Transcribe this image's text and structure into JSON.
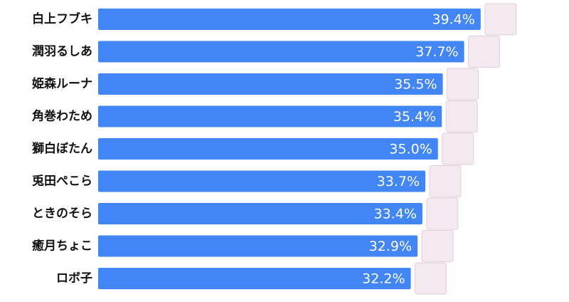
{
  "chart_data": {
    "type": "bar",
    "orientation": "horizontal",
    "color": "#4285f4",
    "categories": [
      "白上フブキ",
      "潤羽るしあ",
      "姫森ルーナ",
      "角巻わため",
      "獅白ぼたん",
      "兎田ぺこら",
      "ときのそら",
      "癒月ちょこ",
      "ロボ子"
    ],
    "values": [
      39.4,
      37.7,
      35.5,
      35.4,
      35.0,
      33.7,
      33.4,
      32.9,
      32.2
    ],
    "value_labels": [
      "39.4%",
      "37.7%",
      "35.5%",
      "35.4%",
      "35.0%",
      "33.7%",
      "33.4%",
      "32.9%",
      "32.2%"
    ]
  }
}
